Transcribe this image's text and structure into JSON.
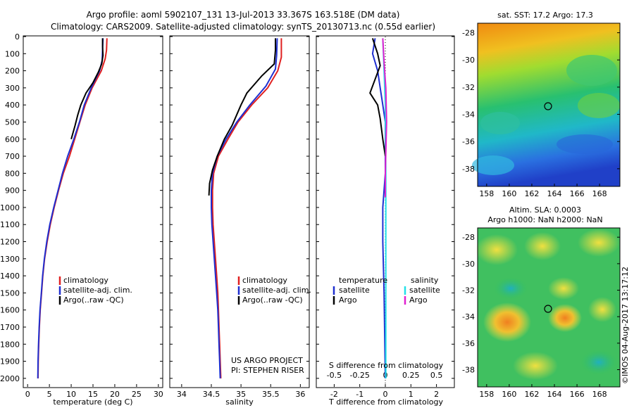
{
  "header": {
    "line1": "Argo profile: aoml 5902107_131 13-Jul-2013 33.367S 163.518E (DM data)",
    "line2": "Climatology: CARS2009. Satellite-adjusted climatology: synTS_20130713.nc (0.55d earlier)"
  },
  "colors": {
    "climatology": "#e02020",
    "satellite": "#1f2fd0",
    "argo": "#000000",
    "sat_salinity": "#22e0e8",
    "argo_salinity": "#e020d0"
  },
  "chart_data": [
    {
      "type": "line",
      "title": "",
      "xlabel": "temperature (deg C)",
      "ylabel": "",
      "xlim": [
        -1,
        31
      ],
      "ylim": [
        2050,
        0
      ],
      "xticks": [
        "0",
        "5",
        "10",
        "15",
        "20",
        "25",
        "30"
      ],
      "yticks": [
        "0",
        "100",
        "200",
        "300",
        "400",
        "500",
        "600",
        "700",
        "800",
        "900",
        "1000",
        "1100",
        "1200",
        "1300",
        "1400",
        "1500",
        "1600",
        "1700",
        "1800",
        "1900",
        "2000"
      ],
      "legend": [
        "climatology",
        "satellite-adj. clim.",
        "Argo(..raw -QC)"
      ],
      "series": [
        {
          "name": "climatology",
          "color": "#e02020",
          "points": [
            [
              18.2,
              10
            ],
            [
              18.1,
              80
            ],
            [
              17.8,
              130
            ],
            [
              16.9,
              200
            ],
            [
              14.8,
              300
            ],
            [
              13.2,
              400
            ],
            [
              12.0,
              500
            ],
            [
              10.8,
              600
            ],
            [
              9.6,
              700
            ],
            [
              8.2,
              800
            ],
            [
              7.1,
              900
            ],
            [
              6.1,
              1000
            ],
            [
              5.2,
              1100
            ],
            [
              4.5,
              1200
            ],
            [
              3.9,
              1300
            ],
            [
              3.5,
              1400
            ],
            [
              3.2,
              1500
            ],
            [
              2.9,
              1600
            ],
            [
              2.7,
              1700
            ],
            [
              2.55,
              1800
            ],
            [
              2.45,
              1900
            ],
            [
              2.4,
              2000
            ]
          ]
        },
        {
          "name": "satellite-adj. clim.",
          "color": "#1f2fd0",
          "points": [
            [
              17.3,
              10
            ],
            [
              17.2,
              80
            ],
            [
              17.1,
              140
            ],
            [
              16.5,
              200
            ],
            [
              14.6,
              300
            ],
            [
              13.0,
              400
            ],
            [
              11.9,
              500
            ],
            [
              10.6,
              600
            ],
            [
              9.2,
              700
            ],
            [
              8.0,
              800
            ],
            [
              7.0,
              900
            ],
            [
              6.0,
              1000
            ],
            [
              5.1,
              1100
            ],
            [
              4.4,
              1200
            ],
            [
              3.85,
              1300
            ],
            [
              3.45,
              1400
            ],
            [
              3.15,
              1500
            ],
            [
              2.85,
              1600
            ],
            [
              2.65,
              1700
            ],
            [
              2.5,
              1800
            ],
            [
              2.4,
              1900
            ],
            [
              2.35,
              2000
            ]
          ]
        },
        {
          "name": "Argo(..raw -QC)",
          "color": "#000000",
          "points": [
            [
              17.2,
              10
            ],
            [
              17.2,
              60
            ],
            [
              17.3,
              110
            ],
            [
              17.0,
              160
            ],
            [
              16.2,
              210
            ],
            [
              15.0,
              270
            ],
            [
              13.4,
              330
            ],
            [
              12.2,
              400
            ],
            [
              11.5,
              460
            ],
            [
              10.9,
              520
            ],
            [
              10.0,
              600
            ]
          ]
        }
      ]
    },
    {
      "type": "line",
      "title": "",
      "xlabel": "salinity",
      "ylabel": "",
      "xlim": [
        33.8,
        36.15
      ],
      "ylim": [
        2050,
        0
      ],
      "xticks": [
        "34",
        "34.5",
        "35",
        "35.5",
        "36"
      ],
      "legend": [
        "climatology",
        "satellite-adj. clim.",
        "Argo(..raw -QC)"
      ],
      "annotations": [
        "US ARGO PROJECT",
        "PI: STEPHEN RISER"
      ],
      "series": [
        {
          "name": "climatology",
          "color": "#e02020",
          "points": [
            [
              35.68,
              10
            ],
            [
              35.68,
              120
            ],
            [
              35.62,
              200
            ],
            [
              35.45,
              300
            ],
            [
              35.18,
              400
            ],
            [
              34.95,
              500
            ],
            [
              34.78,
              600
            ],
            [
              34.62,
              700
            ],
            [
              34.54,
              800
            ],
            [
              34.52,
              900
            ],
            [
              34.52,
              1000
            ],
            [
              34.53,
              1100
            ],
            [
              34.55,
              1200
            ],
            [
              34.57,
              1300
            ],
            [
              34.59,
              1400
            ],
            [
              34.61,
              1500
            ],
            [
              34.62,
              1600
            ],
            [
              34.63,
              1700
            ],
            [
              34.64,
              1800
            ],
            [
              34.65,
              1900
            ],
            [
              34.66,
              2000
            ]
          ]
        },
        {
          "name": "satellite-adj. clim.",
          "color": "#1f2fd0",
          "points": [
            [
              35.61,
              10
            ],
            [
              35.6,
              110
            ],
            [
              35.58,
              190
            ],
            [
              35.42,
              290
            ],
            [
              35.15,
              400
            ],
            [
              34.93,
              500
            ],
            [
              34.75,
              600
            ],
            [
              34.6,
              700
            ],
            [
              34.52,
              800
            ],
            [
              34.5,
              900
            ],
            [
              34.5,
              1000
            ],
            [
              34.51,
              1100
            ],
            [
              34.53,
              1200
            ],
            [
              34.55,
              1300
            ],
            [
              34.57,
              1400
            ],
            [
              34.59,
              1500
            ],
            [
              34.61,
              1600
            ],
            [
              34.62,
              1700
            ],
            [
              34.63,
              1800
            ],
            [
              34.64,
              1900
            ],
            [
              34.65,
              2000
            ]
          ]
        },
        {
          "name": "Argo(..raw -QC)",
          "color": "#000000",
          "points": [
            [
              35.58,
              10
            ],
            [
              35.58,
              80
            ],
            [
              35.56,
              160
            ],
            [
              35.35,
              230
            ],
            [
              35.1,
              330
            ],
            [
              35.0,
              400
            ],
            [
              34.85,
              520
            ],
            [
              34.72,
              600
            ],
            [
              34.6,
              700
            ],
            [
              34.52,
              780
            ],
            [
              34.47,
              860
            ],
            [
              34.46,
              930
            ]
          ]
        }
      ]
    },
    {
      "type": "line",
      "title": "",
      "xlabel": "S difference from climatology / T difference from climatology",
      "ylabel": "",
      "xlim": [
        -2.7,
        2.7
      ],
      "ylim": [
        2050,
        0
      ],
      "xticks_top": [
        "-0.5",
        "-0.25",
        "0",
        "0.25",
        "0.5"
      ],
      "xticks_bottom": [
        "-2",
        "-1",
        "0",
        "1",
        "2"
      ],
      "top_label": "S difference from climatology",
      "bottom_label": "T difference from climatology",
      "legend_headers": [
        "temperature",
        "salinity"
      ],
      "legend": [
        "satellite",
        "Argo",
        "satellite",
        "Argo"
      ],
      "series": [
        {
          "name": "temperature satellite",
          "color": "#1f2fd0",
          "points": [
            [
              -0.4,
              10
            ],
            [
              -0.5,
              100
            ],
            [
              -0.3,
              200
            ],
            [
              -0.2,
              300
            ],
            [
              -0.1,
              400
            ],
            [
              0,
              500
            ],
            [
              0,
              800
            ],
            [
              -0.1,
              1000
            ],
            [
              -0.1,
              1200
            ],
            [
              -0.05,
              1500
            ],
            [
              0,
              2000
            ]
          ]
        },
        {
          "name": "temperature Argo",
          "color": "#000000",
          "points": [
            [
              -0.5,
              10
            ],
            [
              -0.3,
              100
            ],
            [
              -0.2,
              170
            ],
            [
              -0.4,
              250
            ],
            [
              -0.6,
              330
            ],
            [
              -0.3,
              400
            ],
            [
              -0.2,
              480
            ],
            [
              -0.1,
              600
            ],
            [
              0,
              700
            ]
          ]
        },
        {
          "name": "salinity satellite",
          "color": "#22e0e8",
          "points": [
            [
              -0.1,
              10
            ],
            [
              -0.05,
              200
            ],
            [
              0,
              400
            ],
            [
              0.02,
              800
            ],
            [
              0.02,
              1200
            ],
            [
              0.02,
              2000
            ]
          ]
        },
        {
          "name": "salinity Argo",
          "color": "#e020d0",
          "points": [
            [
              -0.1,
              10
            ],
            [
              -0.05,
              150
            ],
            [
              0.02,
              300
            ],
            [
              0.05,
              500
            ],
            [
              0,
              800
            ],
            [
              0,
              940
            ]
          ]
        }
      ]
    },
    {
      "type": "heatmap",
      "title": "sat. SST: 17.2  Argo: 17.3",
      "xticks": [
        "158",
        "160",
        "162",
        "164",
        "166",
        "168"
      ],
      "yticks": [
        "-28",
        "-30",
        "-32",
        "-34",
        "-36",
        "-38"
      ],
      "marker": [
        163.5,
        -33.4
      ]
    },
    {
      "type": "heatmap",
      "title": "Altim. SLA: 0.0003",
      "subtitle": "Argo h1000: NaN h2000: NaN",
      "xticks": [
        "158",
        "160",
        "162",
        "164",
        "166",
        "168"
      ],
      "yticks": [
        "-28",
        "-30",
        "-32",
        "-34",
        "-36",
        "-38"
      ],
      "marker": [
        163.5,
        -33.4
      ]
    }
  ],
  "credit": "©IMOS 04-Aug-2017 13:17:12"
}
